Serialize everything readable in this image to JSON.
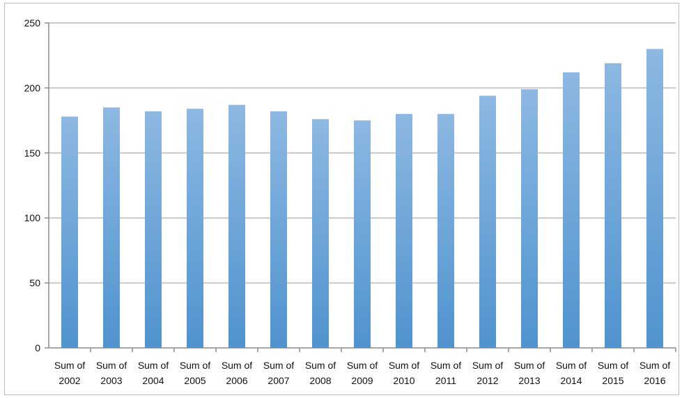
{
  "chart_data": {
    "type": "bar",
    "title": "",
    "xlabel": "",
    "ylabel": "",
    "ylim": [
      0,
      250
    ],
    "yticks": [
      0,
      50,
      100,
      150,
      200,
      250
    ],
    "grid": true,
    "legend": "none",
    "bar_color_top": "#8db8e2",
    "bar_color_bottom": "#4f93cf",
    "categories": [
      [
        "Sum of",
        "2002"
      ],
      [
        "Sum of",
        "2003"
      ],
      [
        "Sum of",
        "2004"
      ],
      [
        "Sum of",
        "2005"
      ],
      [
        "Sum of",
        "2006"
      ],
      [
        "Sum of",
        "2007"
      ],
      [
        "Sum of",
        "2008"
      ],
      [
        "Sum of",
        "2009"
      ],
      [
        "Sum of",
        "2010"
      ],
      [
        "Sum of",
        "2011"
      ],
      [
        "Sum of",
        "2012"
      ],
      [
        "Sum of",
        "2013"
      ],
      [
        "Sum of",
        "2014"
      ],
      [
        "Sum of",
        "2015"
      ],
      [
        "Sum of",
        "2016"
      ]
    ],
    "values": [
      178,
      185,
      182,
      184,
      187,
      182,
      176,
      175,
      180,
      180,
      194,
      199,
      212,
      219,
      230
    ]
  }
}
